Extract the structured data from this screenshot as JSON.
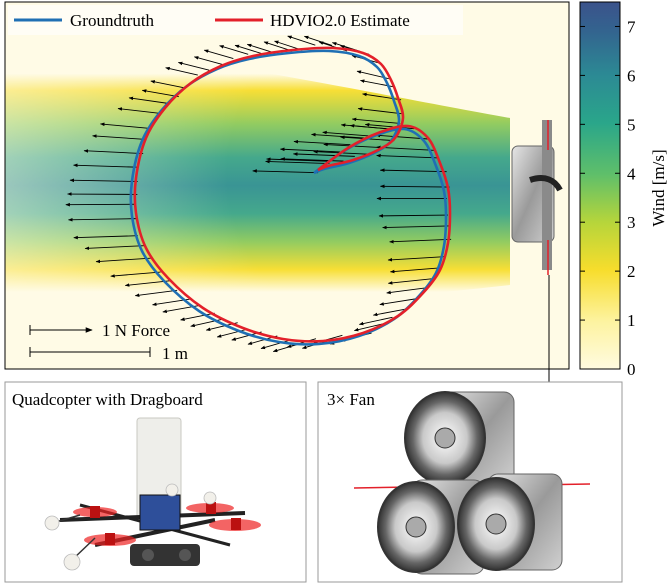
{
  "legend": {
    "groundtruth_label": "Groundtruth",
    "estimate_label": "HDVIO2.0 Estimate"
  },
  "colors": {
    "groundtruth": "#1f6fb4",
    "estimate": "#e3202a",
    "force_arrow": "#000000"
  },
  "colorbar": {
    "label": "Wind [m/s]",
    "min": 0,
    "max": 7.5,
    "ticks": [
      "0",
      "1",
      "2",
      "3",
      "4",
      "5",
      "6",
      "7"
    ],
    "colormap": "viridis (yellow to blue)"
  },
  "scale": {
    "force_label": "1 N Force",
    "distance_label": "1 m"
  },
  "panels": {
    "left_title": "Quadcopter with Dragboard",
    "right_title": "3× Fan"
  }
}
